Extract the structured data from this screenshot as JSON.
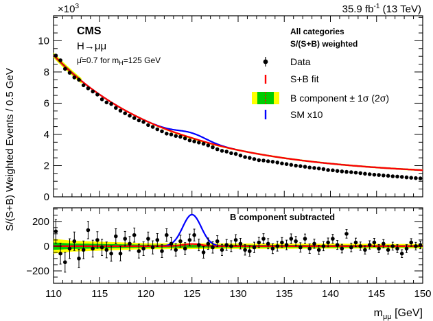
{
  "header": {
    "exponent_base": "×10",
    "exponent_power": "3",
    "lumi_value": "35.9 fb",
    "lumi_power": "-1",
    "lumi_energy": " (13 TeV)"
  },
  "labels": {
    "experiment": "CMS",
    "process": "H→μμ",
    "fit_result_prefix": "μ̂=0.7 for m",
    "fit_result_sub": "H",
    "fit_result_suffix": "=125 GeV",
    "categories_title": "All categories",
    "weighting_title": "S/(S+B) weighted",
    "ratio_title": "B component subtracted",
    "ylabel": "S/(S+B) Weighted Events / 0.5 GeV",
    "xlabel_base": "m",
    "xlabel_sub": "μμ",
    "xlabel_unit": " [GeV]"
  },
  "legend": [
    {
      "label": "Data",
      "style": "marker"
    },
    {
      "label": "S+B fit",
      "style": "line",
      "color": "#ff0000"
    },
    {
      "label": "B component ± 1σ (2σ)",
      "style": "band",
      "color": "#00cc00",
      "outer": "#ffff00",
      "line": "#ff0000"
    },
    {
      "label": "SM x10",
      "style": "line",
      "color": "#0000ff"
    }
  ],
  "chart_data": [
    {
      "type": "scatter",
      "panel": "main",
      "xlim": [
        110,
        150
      ],
      "ylim": [
        0,
        11.6
      ],
      "y_scale_note": "×10^3",
      "xticks": [
        "110",
        "115",
        "120",
        "125",
        "130",
        "135",
        "140",
        "145",
        "150"
      ],
      "yticks": [
        "0",
        "2",
        "4",
        "6",
        "8",
        "10"
      ],
      "series": [
        {
          "name": "Data",
          "x": [
            110.25,
            110.75,
            111.25,
            111.75,
            112.25,
            112.75,
            113.25,
            113.75,
            114.25,
            114.75,
            115.25,
            115.75,
            116.25,
            116.75,
            117.25,
            117.75,
            118.25,
            118.75,
            119.25,
            119.75,
            120.25,
            120.75,
            121.25,
            121.75,
            122.25,
            122.75,
            123.25,
            123.75,
            124.25,
            124.75,
            125.25,
            125.75,
            126.25,
            126.75,
            127.25,
            127.75,
            128.25,
            128.75,
            129.25,
            129.75,
            130.25,
            130.75,
            131.25,
            131.75,
            132.25,
            132.75,
            133.25,
            133.75,
            134.25,
            134.75,
            135.25,
            135.75,
            136.25,
            136.75,
            137.25,
            137.75,
            138.25,
            138.75,
            139.25,
            139.75,
            140.25,
            140.75,
            141.25,
            141.75,
            142.25,
            142.75,
            143.25,
            143.75,
            144.25,
            144.75,
            145.25,
            145.75,
            146.25,
            146.75,
            147.25,
            147.75,
            148.25,
            148.75,
            149.25,
            149.75
          ],
          "y": [
            9.05,
            8.75,
            8.2,
            7.95,
            7.65,
            7.5,
            7.15,
            6.95,
            6.75,
            6.55,
            6.25,
            6.05,
            5.95,
            5.7,
            5.52,
            5.35,
            5.2,
            5.05,
            4.9,
            4.8,
            4.6,
            4.48,
            4.33,
            4.2,
            4.05,
            4.0,
            3.9,
            3.85,
            3.75,
            3.62,
            3.55,
            3.48,
            3.4,
            3.3,
            3.18,
            3.05,
            2.95,
            2.9,
            2.8,
            2.75,
            2.65,
            2.55,
            2.5,
            2.42,
            2.35,
            2.33,
            2.28,
            2.25,
            2.2,
            2.14,
            2.1,
            2.05,
            2.0,
            1.97,
            1.93,
            1.88,
            1.85,
            1.82,
            1.78,
            1.72,
            1.7,
            1.66,
            1.63,
            1.6,
            1.58,
            1.55,
            1.52,
            1.48,
            1.45,
            1.42,
            1.4,
            1.37,
            1.35,
            1.32,
            1.3,
            1.28,
            1.25,
            1.22,
            1.2,
            1.18
          ]
        },
        {
          "name": "S+B fit",
          "model": "background_plus_signal",
          "signal_strength": 0.7,
          "mass": 125,
          "color": "#ff0000"
        },
        {
          "name": "SM x10",
          "model": "background_plus_signal",
          "signal_strength": 10,
          "mass": 125,
          "color": "#0000ff"
        }
      ]
    },
    {
      "type": "scatter",
      "panel": "ratio",
      "xlim": [
        110,
        150
      ],
      "ylim": [
        -300,
        310
      ],
      "yticks": [
        "-200",
        "0",
        "200"
      ],
      "xlabel": "m_μμ [GeV]",
      "series": [
        {
          "name": "Data",
          "x": [
            110.25,
            110.75,
            111.25,
            111.75,
            112.25,
            112.75,
            113.25,
            113.75,
            114.25,
            114.75,
            115.25,
            115.75,
            116.25,
            116.75,
            117.25,
            117.75,
            118.25,
            118.75,
            119.25,
            119.75,
            120.25,
            120.75,
            121.25,
            121.75,
            122.25,
            122.75,
            123.25,
            123.75,
            124.25,
            124.75,
            125.25,
            125.75,
            126.25,
            126.75,
            127.25,
            127.75,
            128.25,
            128.75,
            129.25,
            129.75,
            130.25,
            130.75,
            131.25,
            131.75,
            132.25,
            132.75,
            133.25,
            133.75,
            134.25,
            134.75,
            135.25,
            135.75,
            136.25,
            136.75,
            137.25,
            137.75,
            138.25,
            138.75,
            139.25,
            139.75,
            140.25,
            140.75,
            141.25,
            141.75,
            142.25,
            142.75,
            143.25,
            143.75,
            144.25,
            144.75,
            145.25,
            145.75,
            146.25,
            146.75,
            147.25,
            147.75,
            148.25,
            148.75,
            149.25,
            149.75
          ],
          "y": [
            120,
            -60,
            -130,
            -20,
            40,
            -100,
            -30,
            130,
            -20,
            50,
            -10,
            -30,
            -60,
            80,
            -60,
            60,
            20,
            90,
            -40,
            -20,
            60,
            -10,
            50,
            -40,
            90,
            20,
            -30,
            40,
            -20,
            50,
            90,
            10,
            -50,
            20,
            -10,
            40,
            -30,
            10,
            0,
            50,
            20,
            -30,
            -40,
            -10,
            30,
            60,
            20,
            -20,
            0,
            30,
            10,
            60,
            40,
            -10,
            60,
            -20,
            20,
            -30,
            0,
            30,
            60,
            10,
            -20,
            100,
            -10,
            30,
            0,
            -30,
            10,
            30,
            -20,
            20,
            -30,
            0,
            -20,
            -60,
            -20,
            30,
            0,
            10
          ],
          "errors": [
            95,
            85,
            80,
            80,
            75,
            75,
            72,
            70,
            68,
            67,
            65,
            64,
            62,
            61,
            60,
            59,
            58,
            57,
            56,
            55,
            54,
            53,
            52,
            52,
            51,
            50,
            50,
            49,
            49,
            48,
            48,
            47,
            47,
            46,
            46,
            45,
            45,
            44,
            44,
            43,
            43,
            42,
            42,
            42,
            41,
            41,
            41,
            40,
            40,
            40,
            39,
            39,
            39,
            38,
            38,
            38,
            37,
            37,
            37,
            36,
            36,
            36,
            35,
            35,
            35,
            35,
            34,
            34,
            34,
            33,
            33,
            33,
            33,
            32,
            32,
            32,
            32,
            31,
            31,
            31
          ]
        },
        {
          "name": "SM x10",
          "model": "signal_peak",
          "amplitude": 255,
          "mass": 125,
          "sigma": 1.0,
          "color": "#0000ff"
        },
        {
          "name": "S+B fit",
          "model": "signal_peak",
          "amplitude": 18,
          "mass": 125,
          "sigma": 1.0,
          "color": "#ff0000"
        }
      ]
    }
  ]
}
